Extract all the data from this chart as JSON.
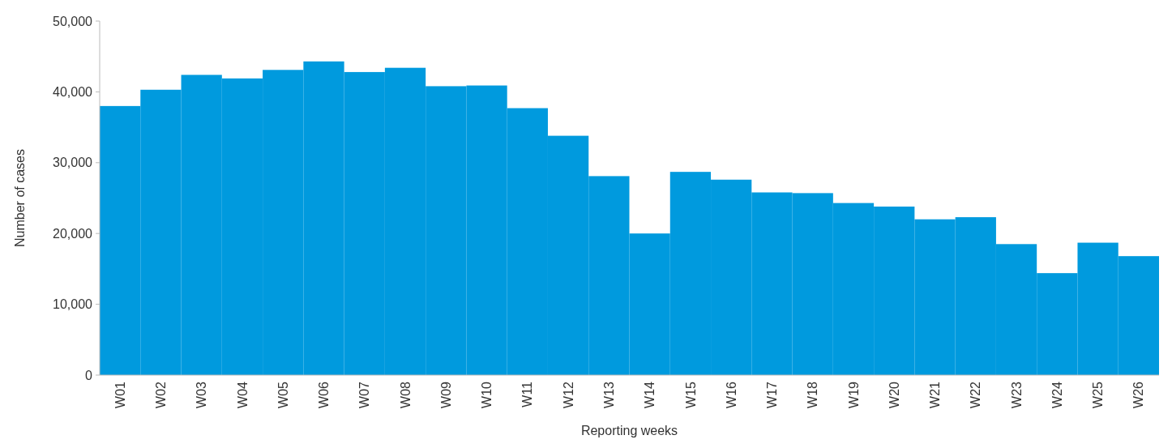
{
  "chart_data": {
    "type": "bar",
    "xlabel": "Reporting weeks",
    "ylabel": "Number of cases",
    "categories": [
      "W01",
      "W02",
      "W03",
      "W04",
      "W05",
      "W06",
      "W07",
      "W08",
      "W09",
      "W10",
      "W11",
      "W12",
      "W13",
      "W14",
      "W15",
      "W16",
      "W17",
      "W18",
      "W19",
      "W20",
      "W21",
      "W22",
      "W23",
      "W24",
      "W25",
      "W26"
    ],
    "values": [
      38000,
      40300,
      42400,
      41900,
      43100,
      44300,
      42800,
      43400,
      40800,
      40900,
      37700,
      33800,
      28100,
      20000,
      28700,
      27600,
      25800,
      25700,
      24300,
      23800,
      22000,
      22300,
      18500,
      14400,
      18700,
      16800
    ],
    "color": "#009ade",
    "ylim": [
      0,
      50000
    ],
    "yticks": [
      {
        "value": 0,
        "label": "0"
      },
      {
        "value": 10000,
        "label": "10,000"
      },
      {
        "value": 20000,
        "label": "20,000"
      },
      {
        "value": 30000,
        "label": "30,000"
      },
      {
        "value": 40000,
        "label": "40,000"
      },
      {
        "value": 50000,
        "label": "50,000"
      }
    ],
    "grid": false
  }
}
